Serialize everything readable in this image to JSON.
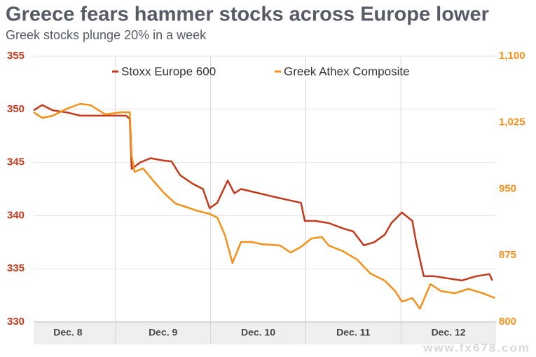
{
  "chart_data": {
    "type": "line",
    "title": "Greece fears hammer stocks across Europe lower",
    "subtitle": "Greek stocks plunge 20% in a week",
    "watermark": "www.fx678.com",
    "xlim": [
      0.14,
      5
    ],
    "xticks": [
      {
        "value": 0.5,
        "label": "Dec. 8"
      },
      {
        "value": 1.5,
        "label": "Dec. 9"
      },
      {
        "value": 2.5,
        "label": "Dec. 10"
      },
      {
        "value": 3.5,
        "label": "Dec. 11"
      },
      {
        "value": 4.5,
        "label": "Dec. 12"
      }
    ],
    "ylim": [
      330,
      355
    ],
    "yticks": [
      330,
      335,
      340,
      345,
      350,
      355
    ],
    "y2lim": [
      800,
      1100
    ],
    "y2ticks": [
      800,
      875,
      950,
      {
        "value": 1025,
        "label": "1,025"
      },
      {
        "value": 1100,
        "label": "1,100"
      }
    ],
    "grid": true,
    "legend": "top",
    "series": [
      {
        "name": "Stoxx Europe 600",
        "color": "#c4391c",
        "x": [
          0.14,
          0.23,
          0.34,
          0.49,
          0.63,
          0.82,
          0.96,
          1.11,
          1.15,
          1.17,
          1.26,
          1.37,
          1.49,
          1.59,
          1.68,
          1.81,
          1.92,
          1.99,
          2.07,
          2.18,
          2.25,
          2.32,
          2.51,
          2.65,
          2.8,
          2.95,
          2.99,
          3.1,
          3.24,
          3.39,
          3.5,
          3.61,
          3.72,
          3.83,
          3.9,
          4.01,
          4.12,
          4.16,
          4.24,
          4.35,
          4.49,
          4.64,
          4.79,
          4.93,
          4.96
        ],
        "values": [
          349.9,
          350.4,
          349.9,
          349.7,
          349.4,
          349.4,
          349.4,
          349.4,
          349.1,
          344.4,
          345,
          345.4,
          345.2,
          345.1,
          343.8,
          343,
          342.5,
          340.7,
          341.2,
          343.3,
          342.1,
          342.5,
          342.1,
          341.8,
          341.5,
          341.2,
          339.5,
          339.5,
          339.3,
          338.8,
          338.5,
          337.2,
          337.5,
          338.2,
          339.3,
          340.3,
          339.5,
          337.5,
          334.3,
          334.3,
          334.1,
          333.9,
          334.3,
          334.5,
          333.9
        ]
      },
      {
        "name": "Greek Athex Composite",
        "color": "#f39019",
        "axis": "y2",
        "x": [
          0.14,
          0.23,
          0.34,
          0.49,
          0.63,
          0.74,
          0.89,
          1.07,
          1.15,
          1.17,
          1.2,
          1.29,
          1.4,
          1.51,
          1.63,
          1.74,
          1.85,
          1.99,
          2.07,
          2.15,
          2.23,
          2.32,
          2.43,
          2.54,
          2.73,
          2.84,
          2.95,
          3.06,
          3.17,
          3.24,
          3.39,
          3.54,
          3.68,
          3.83,
          3.94,
          4.01,
          4.12,
          4.2,
          4.31,
          4.42,
          4.57,
          4.71,
          4.86,
          4.99
        ],
        "values": [
          1036.7,
          1030.3,
          1032.7,
          1040.6,
          1046.2,
          1044.6,
          1034.3,
          1036.7,
          1036.7,
          987.6,
          969.4,
          973.3,
          959.1,
          945.6,
          933.7,
          929.8,
          925.8,
          921.9,
          917.9,
          898.1,
          866.5,
          890.2,
          890.2,
          887.8,
          886.3,
          878.3,
          884.7,
          894.2,
          895.8,
          886.3,
          879.9,
          870.4,
          854.6,
          846.6,
          834.8,
          822.9,
          826.9,
          815,
          842.7,
          834.8,
          832.4,
          837.2,
          832.4,
          826.9
        ]
      }
    ]
  }
}
